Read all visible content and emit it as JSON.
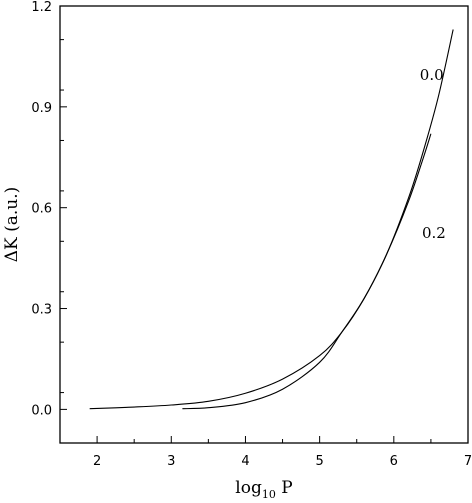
{
  "chart_data": {
    "type": "line",
    "xlabel": {
      "main": "log",
      "sub": "10",
      "tail": " P"
    },
    "ylabel": "ΔK (a.u.)",
    "xlim": [
      1.5,
      7.0
    ],
    "ylim": [
      -0.1,
      1.2
    ],
    "x_ticks": [
      2,
      3,
      4,
      5,
      6,
      7
    ],
    "x_tick_labels": [
      "2",
      "3",
      "4",
      "5",
      "6",
      "7"
    ],
    "y_ticks": [
      0.0,
      0.3,
      0.6,
      0.9,
      1.2
    ],
    "y_tick_labels": [
      "0.0",
      "0.3",
      "0.6",
      "0.9",
      "1.2"
    ],
    "grid": false,
    "series": [
      {
        "name": "0.0",
        "x": [
          1.9,
          2.5,
          3.0,
          3.5,
          4.0,
          4.5,
          5.0,
          5.3,
          5.6,
          5.9,
          6.2,
          6.4,
          6.6,
          6.8
        ],
        "y": [
          0.002,
          0.007,
          0.013,
          0.024,
          0.048,
          0.09,
          0.16,
          0.23,
          0.33,
          0.46,
          0.63,
          0.77,
          0.93,
          1.13
        ]
      },
      {
        "name": "0.2",
        "x": [
          3.15,
          3.5,
          4.0,
          4.5,
          5.0,
          5.3,
          5.6,
          5.9,
          6.2,
          6.4,
          6.5
        ],
        "y": [
          0.002,
          0.005,
          0.02,
          0.06,
          0.14,
          0.23,
          0.33,
          0.46,
          0.62,
          0.75,
          0.82
        ]
      }
    ],
    "annotations": [
      {
        "text": "0.0",
        "x": 6.35,
        "y": 0.98
      },
      {
        "text": "0.2",
        "x": 6.38,
        "y": 0.51
      }
    ]
  }
}
